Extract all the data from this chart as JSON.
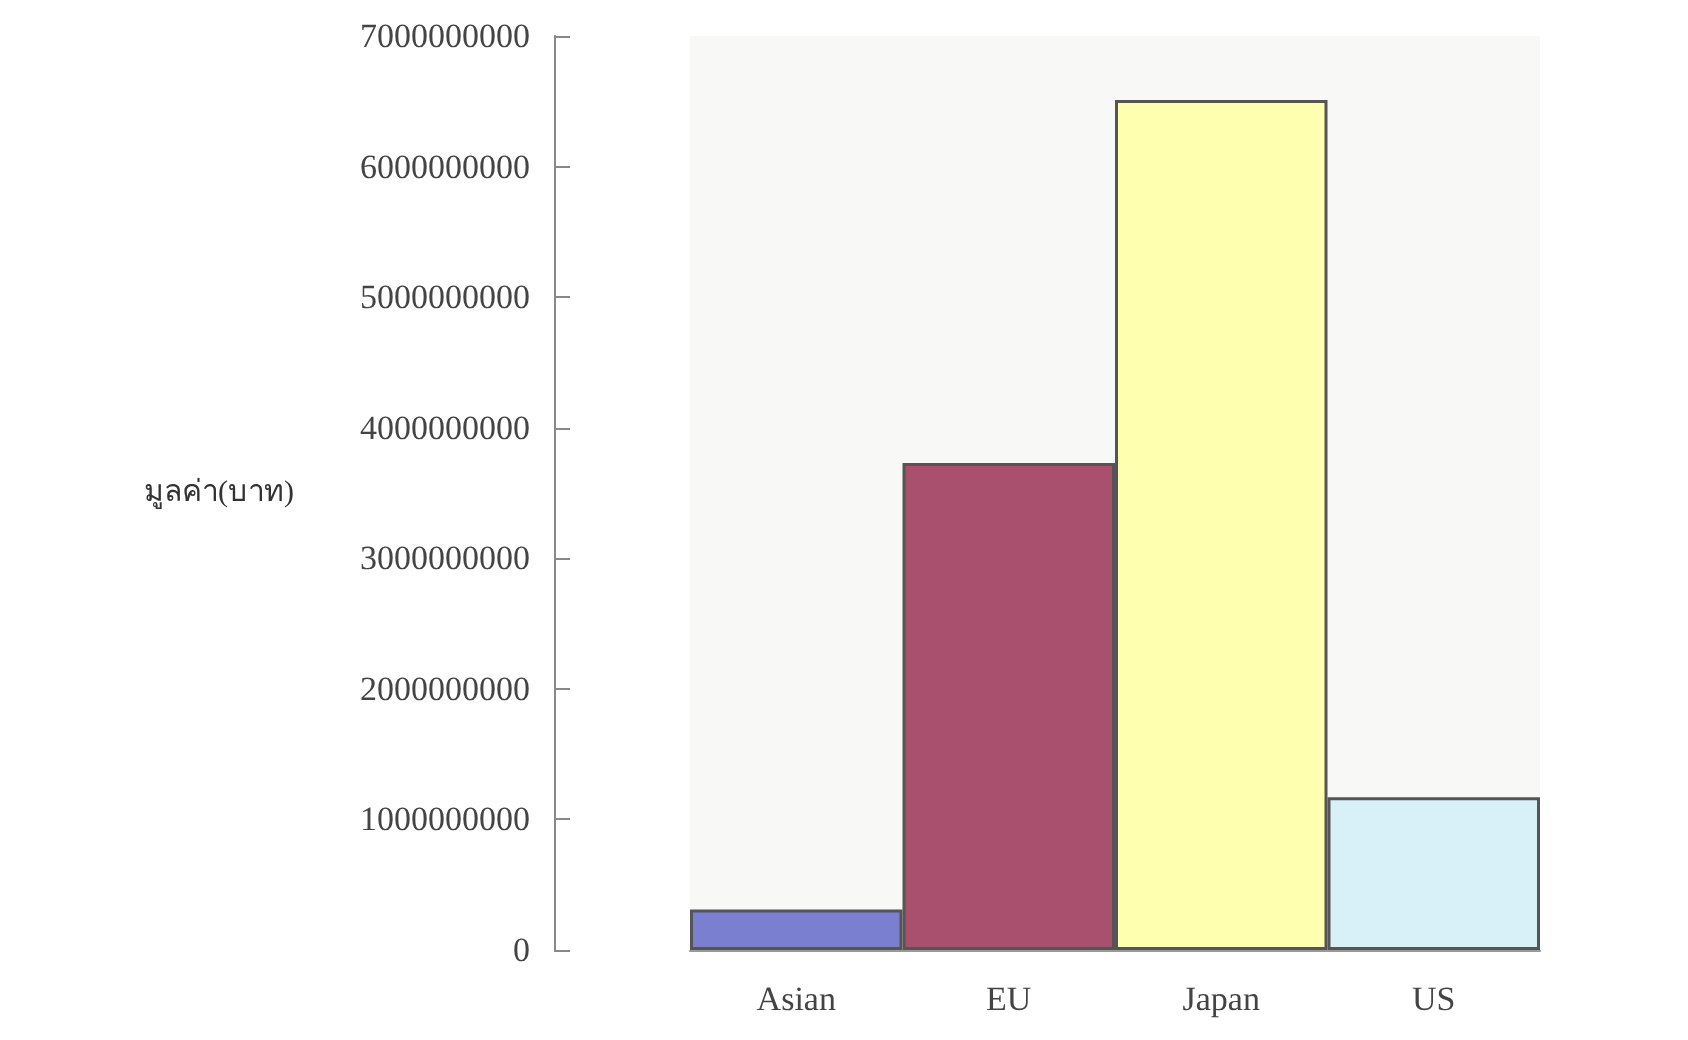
{
  "chart_data": {
    "type": "bar",
    "ylabel": "มูลค่า(บาท)",
    "categories": [
      "Asian",
      "EU",
      "Japan",
      "US"
    ],
    "values": [
      310000000,
      3730000000,
      6510000000,
      1170000000
    ],
    "colors": [
      "#7b7fd0",
      "#a8506e",
      "#ffffb0",
      "#d8f0f8"
    ],
    "ylim": [
      0,
      7000000000
    ],
    "yticks": [
      0,
      1000000000,
      2000000000,
      3000000000,
      4000000000,
      5000000000,
      6000000000,
      7000000000
    ],
    "grid": false
  }
}
